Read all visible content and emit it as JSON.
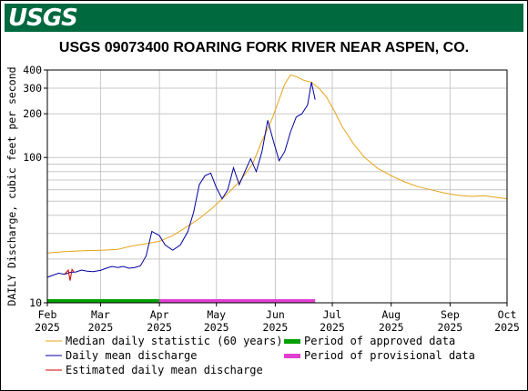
{
  "header": {
    "logo_text": "USGS",
    "brand_color": "#00693e"
  },
  "chart_data": {
    "type": "line",
    "title": "USGS 09073400 ROARING FORK RIVER NEAR ASPEN, CO.",
    "ylabel": "DAILY Discharge, cubic feet per second",
    "xlabel": "",
    "yscale": "log",
    "ylim": [
      10,
      400
    ],
    "xlim": [
      "2025-02-01",
      "2025-10-01"
    ],
    "grid": true,
    "y_ticks": [
      {
        "value": 10,
        "label": "10"
      },
      {
        "value": 100,
        "label": "100"
      },
      {
        "value": 200,
        "label": "200"
      },
      {
        "value": 300,
        "label": "300"
      },
      {
        "value": 400,
        "label": "400"
      }
    ],
    "y_minor_gridlines": [
      20,
      30,
      40,
      50,
      60,
      70,
      80,
      90
    ],
    "x_ticks": [
      {
        "date": "2025-02-01",
        "month": "Feb",
        "year": "2025"
      },
      {
        "date": "2025-03-01",
        "month": "Mar",
        "year": "2025"
      },
      {
        "date": "2025-04-01",
        "month": "Apr",
        "year": "2025"
      },
      {
        "date": "2025-05-01",
        "month": "May",
        "year": "2025"
      },
      {
        "date": "2025-06-01",
        "month": "Jun",
        "year": "2025"
      },
      {
        "date": "2025-07-01",
        "month": "Jul",
        "year": "2025"
      },
      {
        "date": "2025-08-01",
        "month": "Aug",
        "year": "2025"
      },
      {
        "date": "2025-09-01",
        "month": "Sep",
        "year": "2025"
      },
      {
        "date": "2025-10-01",
        "month": "Oct",
        "year": "2025"
      }
    ],
    "series": [
      {
        "name": "Median daily statistic (60 years)",
        "color": "#e8a317",
        "points": [
          [
            "2025-02-01",
            22
          ],
          [
            "2025-02-10",
            22.5
          ],
          [
            "2025-02-20",
            22.8
          ],
          [
            "2025-03-01",
            23
          ],
          [
            "2025-03-10",
            23.3
          ],
          [
            "2025-03-17",
            24.5
          ],
          [
            "2025-03-25",
            25.5
          ],
          [
            "2025-04-01",
            26.5
          ],
          [
            "2025-04-08",
            29
          ],
          [
            "2025-04-15",
            33
          ],
          [
            "2025-04-22",
            38
          ],
          [
            "2025-04-29",
            45
          ],
          [
            "2025-05-06",
            55
          ],
          [
            "2025-05-13",
            68
          ],
          [
            "2025-05-20",
            90
          ],
          [
            "2025-05-25",
            130
          ],
          [
            "2025-05-30",
            180
          ],
          [
            "2025-06-03",
            250
          ],
          [
            "2025-06-06",
            320
          ],
          [
            "2025-06-09",
            370
          ],
          [
            "2025-06-12",
            360
          ],
          [
            "2025-06-16",
            340
          ],
          [
            "2025-06-20",
            330
          ],
          [
            "2025-06-24",
            300
          ],
          [
            "2025-06-28",
            260
          ],
          [
            "2025-07-02",
            210
          ],
          [
            "2025-07-06",
            165
          ],
          [
            "2025-07-12",
            125
          ],
          [
            "2025-07-18",
            100
          ],
          [
            "2025-07-25",
            84
          ],
          [
            "2025-08-01",
            75
          ],
          [
            "2025-08-08",
            68
          ],
          [
            "2025-08-15",
            63
          ],
          [
            "2025-08-22",
            60
          ],
          [
            "2025-08-29",
            57
          ],
          [
            "2025-09-05",
            55
          ],
          [
            "2025-09-12",
            54
          ],
          [
            "2025-09-19",
            54.5
          ],
          [
            "2025-09-26",
            53
          ],
          [
            "2025-10-01",
            52
          ]
        ]
      },
      {
        "name": "Daily mean discharge",
        "color": "#0000a0",
        "points": [
          [
            "2025-02-01",
            15
          ],
          [
            "2025-02-04",
            15.5
          ],
          [
            "2025-02-07",
            16
          ],
          [
            "2025-02-10",
            15.7
          ],
          [
            "2025-02-13",
            16.2
          ],
          [
            "2025-02-16",
            16.3
          ],
          [
            "2025-02-19",
            16.8
          ],
          [
            "2025-02-22",
            16.5
          ],
          [
            "2025-02-25",
            16.4
          ],
          [
            "2025-03-01",
            16.7
          ],
          [
            "2025-03-04",
            17.3
          ],
          [
            "2025-03-07",
            17.8
          ],
          [
            "2025-03-10",
            17.5
          ],
          [
            "2025-03-13",
            17.8
          ],
          [
            "2025-03-16",
            17.3
          ],
          [
            "2025-03-19",
            17.5
          ],
          [
            "2025-03-22",
            18
          ],
          [
            "2025-03-25",
            21
          ],
          [
            "2025-03-28",
            31
          ],
          [
            "2025-04-01",
            29
          ],
          [
            "2025-04-04",
            25
          ],
          [
            "2025-04-08",
            23
          ],
          [
            "2025-04-12",
            25
          ],
          [
            "2025-04-16",
            31
          ],
          [
            "2025-04-19",
            42
          ],
          [
            "2025-04-22",
            65
          ],
          [
            "2025-04-25",
            75
          ],
          [
            "2025-04-28",
            78
          ],
          [
            "2025-05-01",
            62
          ],
          [
            "2025-05-04",
            52
          ],
          [
            "2025-05-07",
            60
          ],
          [
            "2025-05-10",
            85
          ],
          [
            "2025-05-13",
            65
          ],
          [
            "2025-05-16",
            80
          ],
          [
            "2025-05-19",
            98
          ],
          [
            "2025-05-22",
            80
          ],
          [
            "2025-05-25",
            110
          ],
          [
            "2025-05-28",
            180
          ],
          [
            "2025-05-31",
            130
          ],
          [
            "2025-06-03",
            95
          ],
          [
            "2025-06-06",
            110
          ],
          [
            "2025-06-09",
            150
          ],
          [
            "2025-06-12",
            190
          ],
          [
            "2025-06-15",
            200
          ],
          [
            "2025-06-18",
            230
          ],
          [
            "2025-06-20",
            330
          ],
          [
            "2025-06-22",
            250
          ]
        ]
      },
      {
        "name": "Estimated daily mean discharge",
        "color": "#cc0000",
        "points": [
          [
            "2025-02-10",
            15.7
          ],
          [
            "2025-02-12",
            16.8
          ],
          [
            "2025-02-13",
            14.2
          ],
          [
            "2025-02-14",
            17.0
          ],
          [
            "2025-02-15",
            16.3
          ]
        ]
      }
    ],
    "periods": [
      {
        "name": "Period of approved data",
        "color": "#00a000",
        "start": "2025-02-01",
        "end": "2025-04-01"
      },
      {
        "name": "Period of provisional data",
        "color": "#e040d0",
        "start": "2025-04-01",
        "end": "2025-06-22"
      }
    ],
    "legend": {
      "position": "bottom",
      "entries": [
        {
          "label": "Median daily statistic (60 years)",
          "color": "#e8a317",
          "style": "line"
        },
        {
          "label": "Period of approved data",
          "color": "#00a000",
          "style": "bar"
        },
        {
          "label": "Daily mean discharge",
          "color": "#0000a0",
          "style": "line"
        },
        {
          "label": "Period of provisional data",
          "color": "#e040d0",
          "style": "bar"
        },
        {
          "label": "Estimated daily mean discharge",
          "color": "#cc0000",
          "style": "line"
        }
      ]
    }
  }
}
